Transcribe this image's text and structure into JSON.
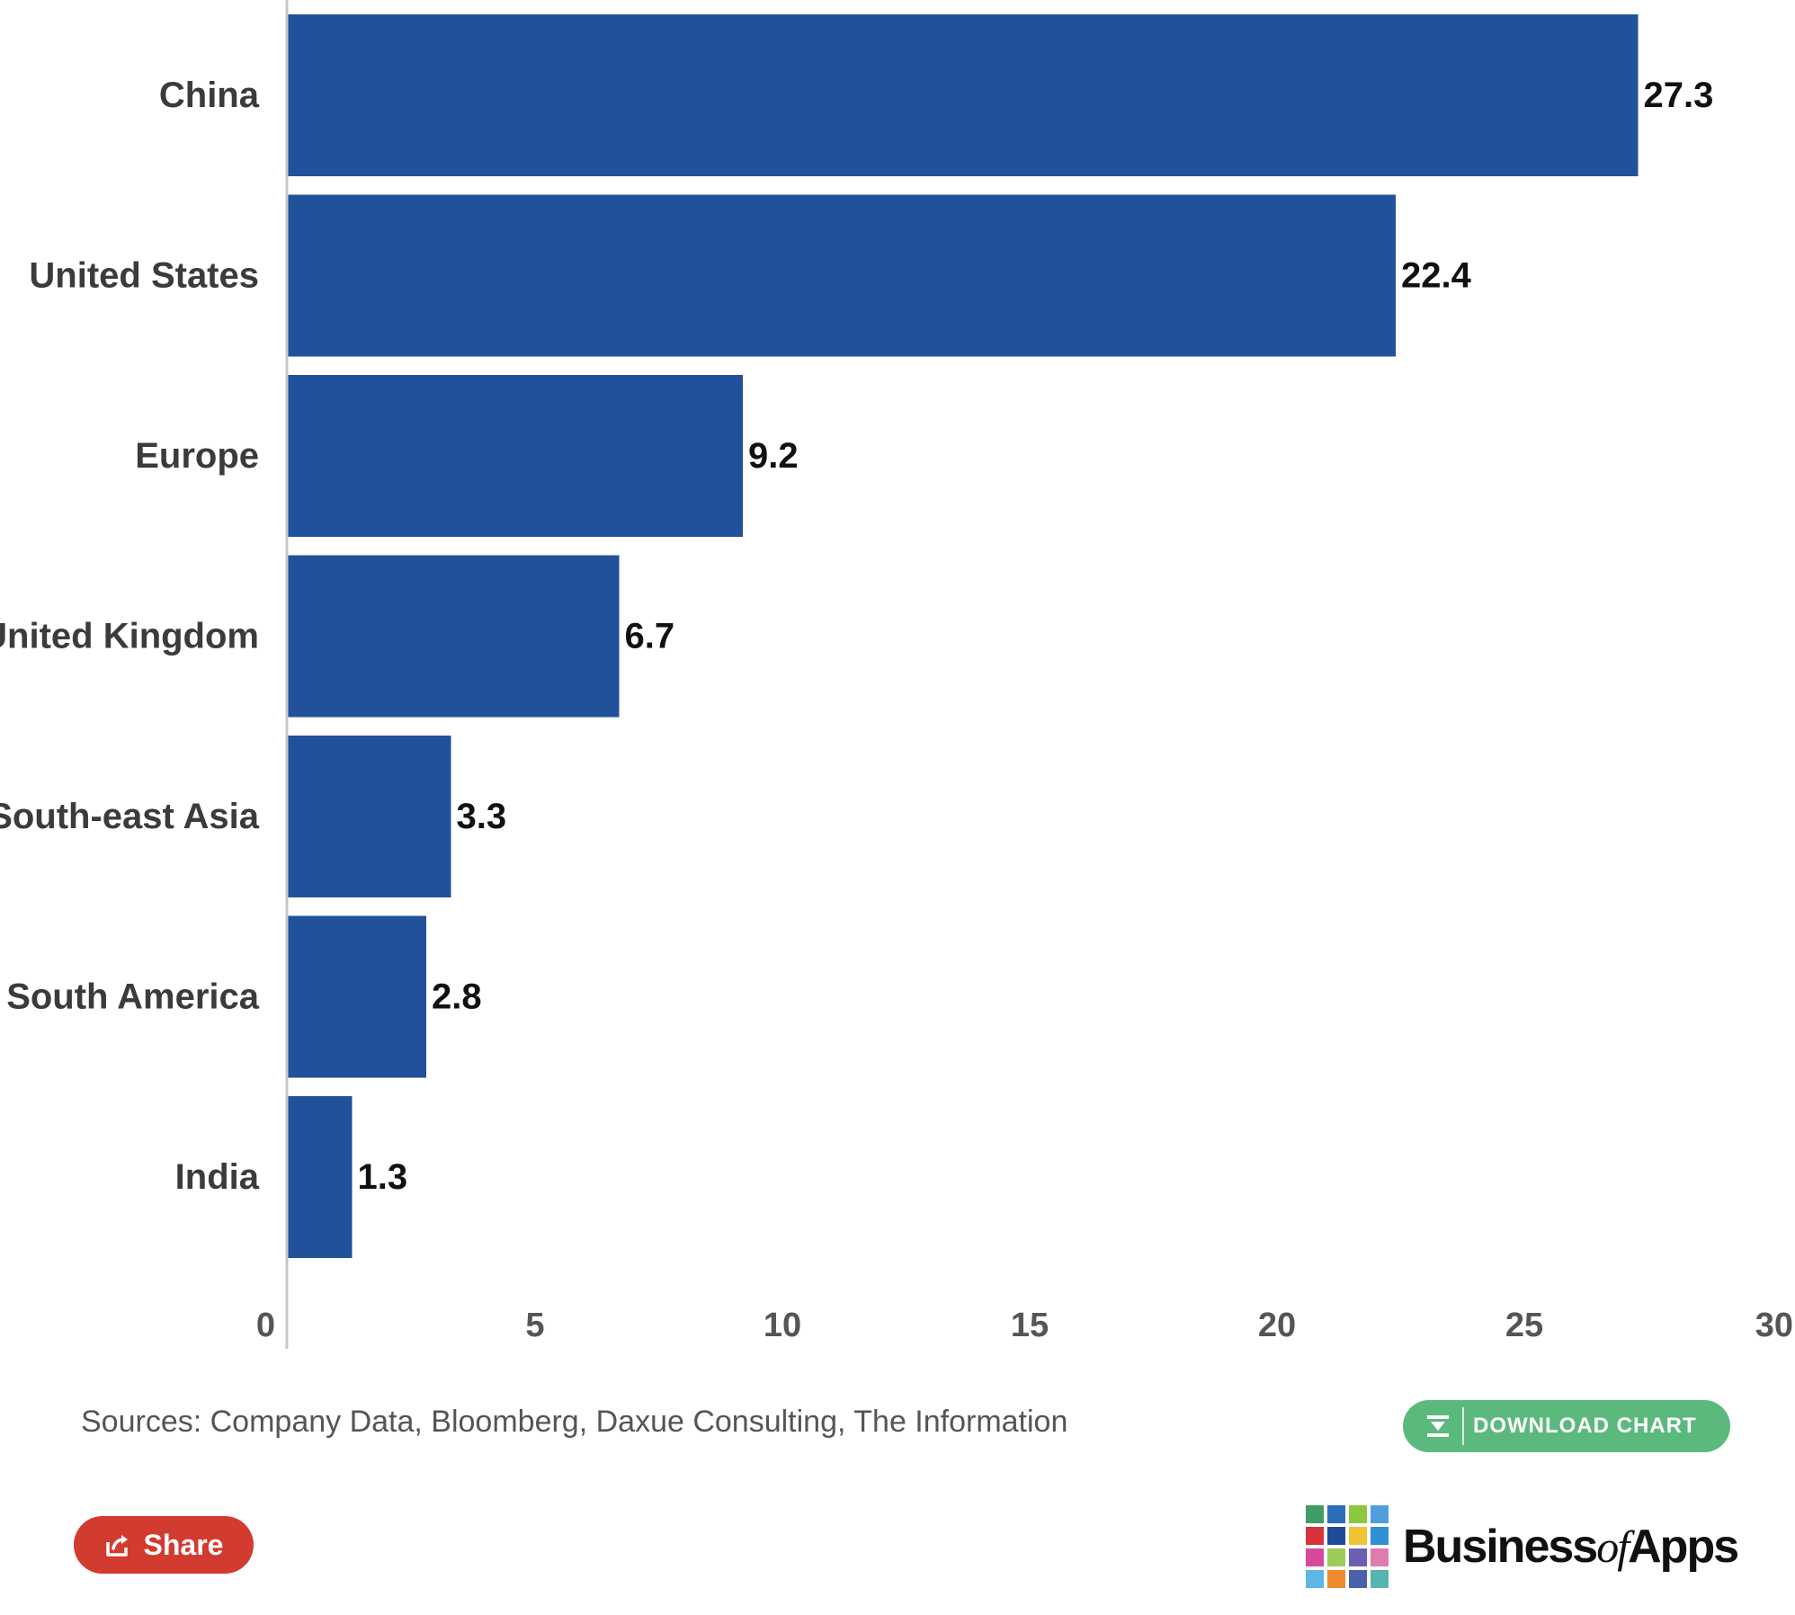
{
  "chart_data": {
    "type": "bar",
    "orientation": "horizontal",
    "categories": [
      "China",
      "United States",
      "Europe",
      "United Kingdom",
      "South-east Asia",
      "South America",
      "India"
    ],
    "values": [
      27.3,
      22.4,
      9.2,
      6.7,
      3.3,
      2.8,
      1.3
    ],
    "value_labels": [
      "27.3",
      "22.4",
      "9.2",
      "6.7",
      "3.3",
      "2.8",
      "1.3"
    ],
    "x_ticks": [
      "0",
      "5",
      "10",
      "15",
      "20",
      "25",
      "30"
    ],
    "xlim": [
      0,
      30
    ],
    "grid": false,
    "bar_color": "#22519b",
    "title": "",
    "xlabel": "",
    "ylabel": ""
  },
  "footer": {
    "sources": "Sources: Company Data, Bloomberg, Daxue Consulting, The Information",
    "download_label": "DOWNLOAD CHART",
    "download_icon": "download-icon",
    "share_label": "Share",
    "share_icon": "share-icon"
  },
  "brand": {
    "name_part1": "Business",
    "name_part2": "of",
    "name_part3": "Apps",
    "grid_colors": [
      "#3f9d63",
      "#2c6fb8",
      "#8dc63f",
      "#4f9fdc",
      "#d7323d",
      "#1f4b99",
      "#f1c233",
      "#2f8fd0",
      "#d6489a",
      "#9ccb5a",
      "#6a5fb3",
      "#e07bb0",
      "#5db6e6",
      "#ef8b2c",
      "#4a61a8",
      "#56b5b0"
    ],
    "accent_green": "#5cb97d",
    "accent_red": "#d23b2f"
  }
}
